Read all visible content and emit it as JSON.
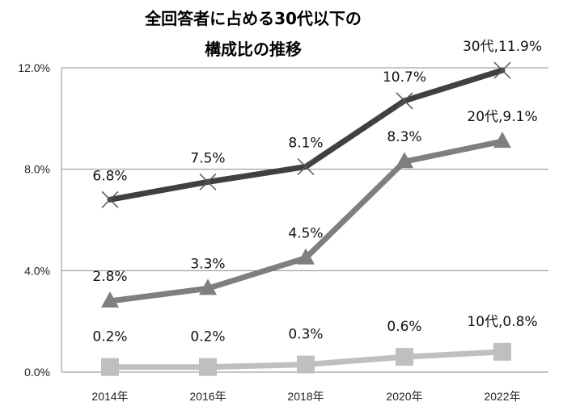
{
  "chart_data": {
    "type": "line",
    "title_line1": "全回答者に占める30代以下の",
    "title_line2": "構成比の推移",
    "categories": [
      "2014年",
      "2016年",
      "2018年",
      "2020年",
      "2022年"
    ],
    "y_ticks": [
      "0.0%",
      "4.0%",
      "8.0%",
      "12.0%"
    ],
    "ylim": [
      0,
      12
    ],
    "grid": true,
    "series": [
      {
        "name": "30代",
        "values": [
          6.8,
          7.5,
          8.1,
          10.7,
          11.9
        ],
        "labels": [
          "6.8%",
          "7.5%",
          "8.1%",
          "10.7%",
          "30代,11.9%"
        ],
        "color": "#404040",
        "marker": "x"
      },
      {
        "name": "20代",
        "values": [
          2.8,
          3.3,
          4.5,
          8.3,
          9.1
        ],
        "labels": [
          "2.8%",
          "3.3%",
          "4.5%",
          "8.3%",
          "20代,9.1%"
        ],
        "color": "#7f7f7f",
        "marker": "triangle"
      },
      {
        "name": "10代",
        "values": [
          0.2,
          0.2,
          0.3,
          0.6,
          0.8
        ],
        "labels": [
          "0.2%",
          "0.2%",
          "0.3%",
          "0.6%",
          "10代,0.8%"
        ],
        "color": "#bfbfbf",
        "marker": "square"
      }
    ]
  }
}
